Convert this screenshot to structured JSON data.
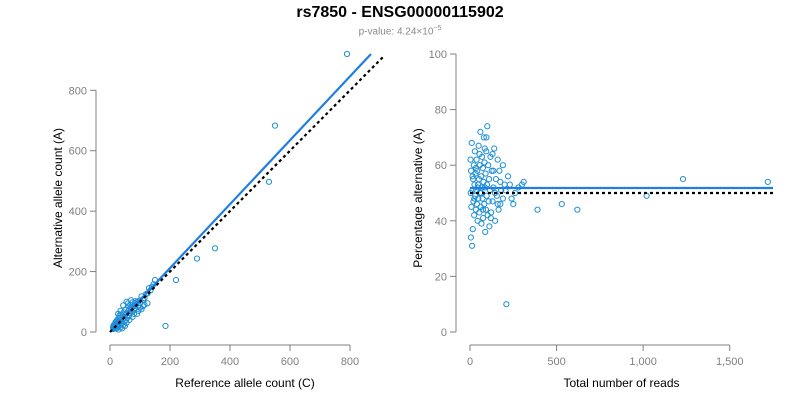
{
  "title": "rs7850 - ENSG00000115902",
  "subtitle": {
    "prefix": "p-value: 4.24×10",
    "exponent": "−5"
  },
  "colors": {
    "points": "#1f8fd4",
    "fit_line": "#1e7fe0",
    "reference_line": "#000000",
    "axis": "#808080"
  },
  "chart_data": [
    {
      "type": "scatter",
      "xlabel": "Reference allele count (C)",
      "ylabel": "Alternative allele count (A)",
      "xlim": [
        0,
        900
      ],
      "ylim": [
        0,
        920
      ],
      "x_ticks": [
        0,
        200,
        400,
        600,
        800
      ],
      "x_tick_labels": [
        "0",
        "200",
        "400",
        "600",
        "800"
      ],
      "y_ticks": [
        0,
        200,
        400,
        600,
        800
      ],
      "y_tick_labels": [
        "0",
        "200",
        "400",
        "600",
        "800"
      ],
      "grid": false,
      "points": [
        [
          790,
          920
        ],
        [
          550,
          683
        ],
        [
          530,
          497
        ],
        [
          350,
          277
        ],
        [
          290,
          243
        ],
        [
          220,
          172
        ],
        [
          185,
          20
        ],
        [
          150,
          172
        ],
        [
          145,
          158
        ],
        [
          140,
          150
        ],
        [
          135,
          138
        ],
        [
          130,
          145
        ],
        [
          125,
          128
        ],
        [
          120,
          125
        ],
        [
          115,
          112
        ],
        [
          110,
          108
        ],
        [
          105,
          118
        ],
        [
          100,
          96
        ],
        [
          98,
          104
        ],
        [
          95,
          88
        ],
        [
          92,
          101
        ],
        [
          88,
          92
        ],
        [
          85,
          80
        ],
        [
          82,
          95
        ],
        [
          80,
          72
        ],
        [
          78,
          85
        ],
        [
          75,
          98
        ],
        [
          72,
          68
        ],
        [
          70,
          78
        ],
        [
          68,
          90
        ],
        [
          66,
          62
        ],
        [
          64,
          55
        ],
        [
          62,
          70
        ],
        [
          60,
          85
        ],
        [
          58,
          48
        ],
        [
          56,
          62
        ],
        [
          55,
          100
        ],
        [
          54,
          40
        ],
        [
          52,
          75
        ],
        [
          50,
          55
        ],
        [
          48,
          35
        ],
        [
          46,
          65
        ],
        [
          45,
          45
        ],
        [
          44,
          88
        ],
        [
          42,
          50
        ],
        [
          40,
          30
        ],
        [
          38,
          58
        ],
        [
          37,
          40
        ],
        [
          35,
          70
        ],
        [
          34,
          25
        ],
        [
          33,
          48
        ],
        [
          32,
          55
        ],
        [
          31,
          38
        ],
        [
          30,
          20
        ],
        [
          29,
          45
        ],
        [
          28,
          33
        ],
        [
          27,
          60
        ],
        [
          26,
          28
        ],
        [
          25,
          18
        ],
        [
          24,
          40
        ],
        [
          23,
          30
        ],
        [
          22,
          22
        ],
        [
          21,
          35
        ],
        [
          20,
          15
        ],
        [
          19,
          26
        ],
        [
          18,
          32
        ],
        [
          17,
          20
        ],
        [
          16,
          12
        ],
        [
          15,
          24
        ],
        [
          14,
          18
        ],
        [
          13,
          14
        ],
        [
          12,
          22
        ],
        [
          11,
          10
        ],
        [
          10,
          16
        ],
        [
          60,
          95
        ],
        [
          70,
          105
        ],
        [
          85,
          102
        ],
        [
          65,
          40
        ],
        [
          90,
          60
        ],
        [
          110,
          85
        ],
        [
          125,
          95
        ],
        [
          75,
          50
        ],
        [
          50,
          20
        ],
        [
          40,
          12
        ],
        [
          95,
          70
        ],
        [
          105,
          75
        ],
        [
          55,
          30
        ],
        [
          45,
          22
        ],
        [
          35,
          15
        ],
        [
          28,
          8
        ],
        [
          22,
          12
        ],
        [
          80,
          60
        ],
        [
          100,
          80
        ],
        [
          115,
          90
        ]
      ],
      "series": [
        {
          "kind": "fit",
          "x": [
            0,
            870
          ],
          "y": [
            0,
            920
          ]
        },
        {
          "kind": "reference",
          "x": [
            0,
            910
          ],
          "y": [
            0,
            910
          ]
        }
      ]
    },
    {
      "type": "scatter",
      "xlabel": "Total number of reads",
      "ylabel": "Percentage alternative (A)",
      "xlim": [
        0,
        1750
      ],
      "ylim": [
        0,
        100
      ],
      "x_ticks": [
        0,
        500,
        1000,
        1500
      ],
      "x_tick_labels": [
        "0",
        "500",
        "1,000",
        "1,500"
      ],
      "y_ticks": [
        0,
        20,
        40,
        60,
        80,
        100
      ],
      "y_tick_labels": [
        "0",
        "20",
        "40",
        "60",
        "80",
        "100"
      ],
      "grid": false,
      "points": [
        [
          1720,
          54
        ],
        [
          1230,
          55
        ],
        [
          1020,
          49
        ],
        [
          620,
          44
        ],
        [
          530,
          46
        ],
        [
          390,
          44
        ],
        [
          310,
          54
        ],
        [
          300,
          53
        ],
        [
          280,
          52
        ],
        [
          260,
          50
        ],
        [
          240,
          48
        ],
        [
          220,
          56
        ],
        [
          210,
          10
        ],
        [
          200,
          53
        ],
        [
          190,
          60
        ],
        [
          180,
          51
        ],
        [
          175,
          46
        ],
        [
          170,
          58
        ],
        [
          165,
          44
        ],
        [
          160,
          62
        ],
        [
          155,
          49
        ],
        [
          150,
          55
        ],
        [
          145,
          40
        ],
        [
          140,
          66
        ],
        [
          135,
          52
        ],
        [
          130,
          47
        ],
        [
          125,
          58
        ],
        [
          122,
          43
        ],
        [
          118,
          63
        ],
        [
          115,
          51
        ],
        [
          112,
          38
        ],
        [
          110,
          55
        ],
        [
          108,
          47
        ],
        [
          105,
          60
        ],
        [
          102,
          42
        ],
        [
          100,
          74
        ],
        [
          98,
          53
        ],
        [
          96,
          49
        ],
        [
          94,
          65
        ],
        [
          92,
          44
        ],
        [
          90,
          57
        ],
        [
          88,
          36
        ],
        [
          86,
          52
        ],
        [
          84,
          61
        ],
        [
          82,
          46
        ],
        [
          80,
          70
        ],
        [
          78,
          54
        ],
        [
          76,
          41
        ],
        [
          74,
          59
        ],
        [
          72,
          48
        ],
        [
          70,
          63
        ],
        [
          68,
          52
        ],
        [
          66,
          39
        ],
        [
          64,
          56
        ],
        [
          62,
          45
        ],
        [
          60,
          72
        ],
        [
          58,
          50
        ],
        [
          56,
          60
        ],
        [
          54,
          43
        ],
        [
          52,
          55
        ],
        [
          50,
          67
        ],
        [
          48,
          48
        ],
        [
          46,
          53
        ],
        [
          44,
          40
        ],
        [
          42,
          58
        ],
        [
          40,
          46
        ],
        [
          38,
          62
        ],
        [
          36,
          51
        ],
        [
          34,
          44
        ],
        [
          32,
          57
        ],
        [
          30,
          49
        ],
        [
          28,
          65
        ],
        [
          26,
          53
        ],
        [
          24,
          42
        ],
        [
          22,
          60
        ],
        [
          20,
          47
        ],
        [
          18,
          55
        ],
        [
          16,
          37
        ],
        [
          14,
          51
        ],
        [
          12,
          31
        ],
        [
          10,
          68
        ],
        [
          8,
          45
        ],
        [
          6,
          58
        ],
        [
          5,
          34
        ],
        [
          4,
          50
        ],
        [
          3,
          62
        ],
        [
          135,
          58
        ],
        [
          145,
          50
        ],
        [
          160,
          46
        ],
        [
          175,
          54
        ],
        [
          190,
          48
        ],
        [
          205,
          51
        ],
        [
          230,
          53
        ],
        [
          250,
          46
        ],
        [
          95,
          70
        ],
        [
          85,
          66
        ],
        [
          75,
          44
        ],
        [
          65,
          50
        ],
        [
          55,
          64
        ],
        [
          45,
          52
        ],
        [
          35,
          59
        ],
        [
          25,
          48
        ],
        [
          15,
          56
        ],
        [
          120,
          41
        ],
        [
          130,
          64
        ]
      ],
      "series": [
        {
          "kind": "fit",
          "x": [
            0,
            1750
          ],
          "y": [
            51.8,
            51.8
          ]
        },
        {
          "kind": "reference",
          "x": [
            0,
            1750
          ],
          "y": [
            50,
            50
          ]
        }
      ]
    }
  ]
}
